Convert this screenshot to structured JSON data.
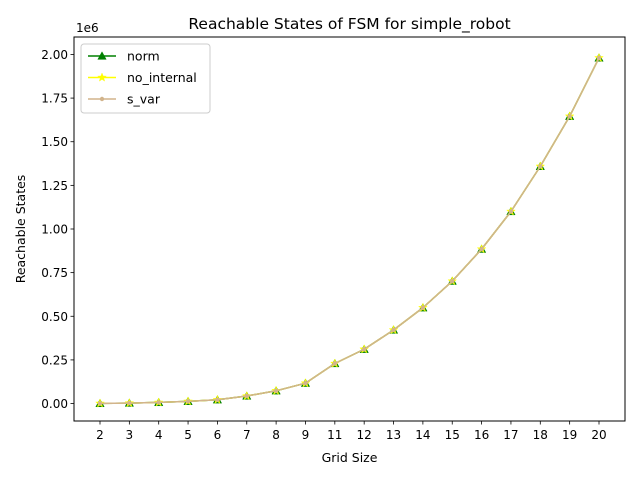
{
  "chart_data": {
    "type": "line",
    "title": "Reachable States of FSM for simple_robot",
    "xlabel": "Grid Size",
    "ylabel": "Reachable States",
    "y_multiplier_label": "1e6",
    "categories": [
      "2",
      "3",
      "4",
      "5",
      "6",
      "7",
      "8",
      "9",
      "11",
      "12",
      "13",
      "14",
      "15",
      "16",
      "17",
      "18",
      "19",
      "20"
    ],
    "yticks": [
      "0.00",
      "0.25",
      "0.50",
      "0.75",
      "1.00",
      "1.25",
      "1.50",
      "1.75",
      "2.00"
    ],
    "ylim": [
      -0.1,
      2.1
    ],
    "grid": false,
    "legend_position": "upper-left",
    "series": [
      {
        "name": "norm",
        "color": "#008000",
        "marker": "triangle",
        "values": [
          0.0008,
          0.0027,
          0.0064,
          0.0125,
          0.0216,
          0.0432,
          0.0731,
          0.1166,
          0.2295,
          0.311,
          0.4214,
          0.5488,
          0.7013,
          0.8847,
          1.1004,
          1.3589,
          1.6458,
          1.98
        ]
      },
      {
        "name": "no_internal",
        "color": "#ffff00",
        "marker": "star",
        "values": [
          0.0008,
          0.0027,
          0.0064,
          0.0125,
          0.0216,
          0.0432,
          0.0731,
          0.1166,
          0.2295,
          0.311,
          0.4214,
          0.5488,
          0.7013,
          0.8847,
          1.1004,
          1.3589,
          1.6458,
          1.98
        ]
      },
      {
        "name": "s_var",
        "color": "#d2b48c",
        "marker": "point",
        "values": [
          0.0008,
          0.0027,
          0.0064,
          0.0125,
          0.0216,
          0.0432,
          0.0731,
          0.1166,
          0.2295,
          0.311,
          0.4214,
          0.5488,
          0.7013,
          0.8847,
          1.1004,
          1.3589,
          1.6458,
          1.98
        ]
      }
    ]
  }
}
